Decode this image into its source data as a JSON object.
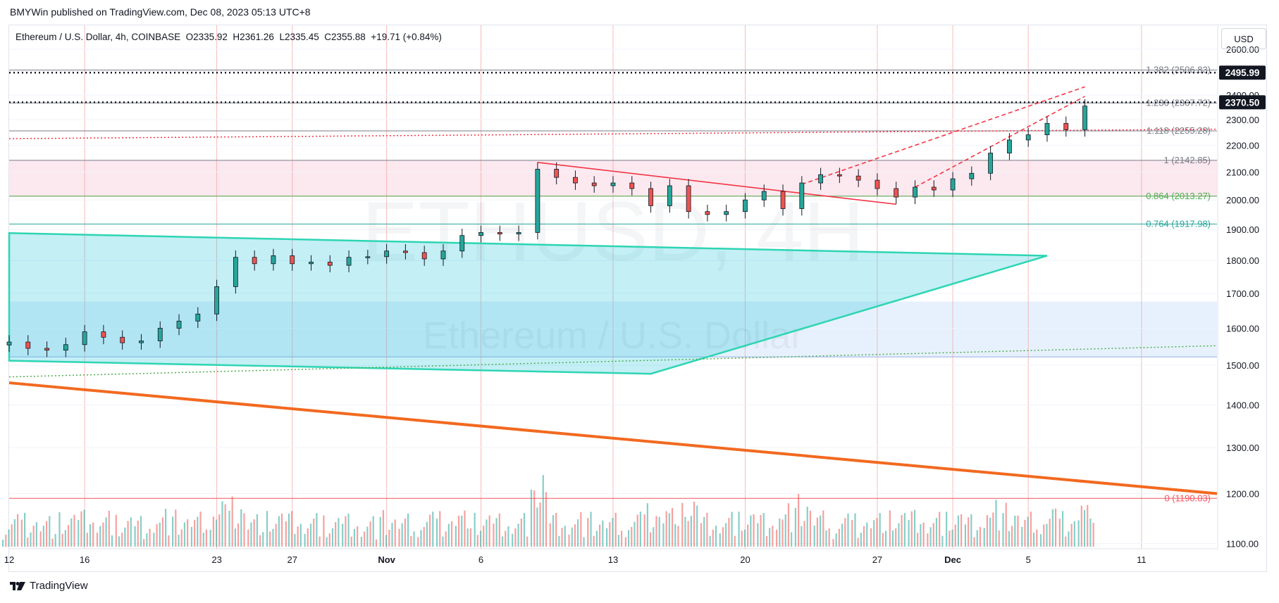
{
  "header": {
    "published_line": "BMYWin published on TradingView.com, Dec 08, 2023 05:13 UTC+8",
    "legend": "Ethereum / U.S. Dollar, 4h, COINBASE  O2335.92  H2361.26  L2335.45  C2355.88  +19.71 (+0.84%)",
    "currency": "USD"
  },
  "footer": {
    "brand": "TradingView",
    "brand_icon": "tradingview-logo-icon"
  },
  "watermark": {
    "symbol": "ETHUSD, 4H",
    "name": "Ethereum / U.S. Dollar"
  },
  "colors": {
    "up": "#26a69a",
    "down": "#ef5350",
    "fib_text": "#787b86",
    "fib_green": "#4caf50",
    "channel": "#2ed5b3",
    "trend_orange": "#f2691f",
    "trend_red": "#f23645",
    "zone_pink": "#fce4ec",
    "zone_blue": "#e3effd"
  },
  "chart_data": {
    "type": "candlestick",
    "symbol": "ETHUSD",
    "timeframe": "4h",
    "exchange": "COINBASE",
    "last": {
      "open": 2335.92,
      "high": 2361.26,
      "low": 2335.45,
      "close": 2355.88,
      "change": 19.71,
      "change_pct": 0.84
    },
    "y_axis": {
      "ticks": [
        1100,
        1200,
        1300,
        1400,
        1500,
        1600,
        1700,
        1800,
        1900,
        2000,
        2100,
        2200,
        2300,
        2400,
        2600
      ],
      "range": [
        1090,
        2710
      ]
    },
    "x_axis": {
      "tick_labels": [
        {
          "label": "12",
          "date": "2023-10-12"
        },
        {
          "label": "16",
          "date": "2023-10-16"
        },
        {
          "label": "23",
          "date": "2023-10-23"
        },
        {
          "label": "27",
          "date": "2023-10-27"
        },
        {
          "label": "Nov",
          "date": "2023-11-01"
        },
        {
          "label": "6",
          "date": "2023-11-06"
        },
        {
          "label": "13",
          "date": "2023-11-13"
        },
        {
          "label": "20",
          "date": "2023-11-20"
        },
        {
          "label": "27",
          "date": "2023-11-27"
        },
        {
          "label": "Dec",
          "date": "2023-12-01"
        },
        {
          "label": "5",
          "date": "2023-12-05"
        },
        {
          "label": "11",
          "date": "2023-12-11"
        }
      ],
      "range": [
        "2023-10-12",
        "2023-12-15"
      ]
    },
    "price_labels": [
      {
        "price": 2495.99,
        "text": "2495.99"
      },
      {
        "price": 2370.5,
        "text": "2370.50"
      }
    ],
    "horizontal_levels": [
      {
        "price": 2495.99,
        "style": "dotted-black"
      },
      {
        "price": 2370.5,
        "style": "dotted-black"
      }
    ],
    "fib_levels": [
      {
        "ratio": "1.382",
        "price": 2506.83,
        "text": "1.382 (2506.83)",
        "color": "#787b86"
      },
      {
        "ratio": "1.236",
        "price": 2367.72,
        "text": "1.236 (2367.72)",
        "color": "#787b86"
      },
      {
        "ratio": "1.118",
        "price": 2255.28,
        "text": "1.118 (2255.28)",
        "color": "#787b86"
      },
      {
        "ratio": "1",
        "price": 2142.85,
        "text": "1 (2142.85)",
        "color": "#787b86"
      },
      {
        "ratio": "0.864",
        "price": 2013.27,
        "text": "0.864 (2013.27)",
        "color": "#4caf50"
      },
      {
        "ratio": "0.764",
        "price": 1917.98,
        "text": "0.764 (1917.98)",
        "color": "#26a69a"
      },
      {
        "ratio": "0",
        "price": 1190.03,
        "text": "0 (1190.03)",
        "color": "#f7525f"
      }
    ],
    "zones": [
      {
        "name": "resistance-zone",
        "from": "2023-10-12",
        "to": "2023-12-15",
        "low": 2013,
        "high": 2142,
        "color": "#fce4ec"
      },
      {
        "name": "support-zone",
        "from": "2023-10-12",
        "to": "2023-12-15",
        "low": 1522,
        "high": 1676,
        "color": "#e3effd"
      }
    ],
    "trendlines": [
      {
        "name": "orange-trendline",
        "from": [
          "2023-10-12",
          1455
        ],
        "to": [
          "2023-12-15",
          1200
        ],
        "color": "#f2691f"
      },
      {
        "name": "red-descending-line",
        "from": [
          "2023-11-09",
          2135
        ],
        "to": [
          "2023-11-28",
          1985
        ],
        "color": "#f23645"
      },
      {
        "name": "red-dashed-channel-upper",
        "from": [
          "2023-11-23",
          2055
        ],
        "to": [
          "2023-12-08",
          2435
        ],
        "color": "#f23645",
        "dashed": true
      },
      {
        "name": "red-dashed-channel-lower",
        "from": [
          "2023-11-29",
          2045
        ],
        "to": [
          "2023-12-08",
          2395
        ],
        "color": "#f23645",
        "dashed": true
      },
      {
        "name": "red-dotted-line",
        "from": [
          "2023-10-12",
          2225
        ],
        "to": [
          "2023-12-15",
          2262
        ],
        "color": "#f23645",
        "dotted": true
      },
      {
        "name": "green-dotted-line",
        "from": [
          "2023-10-12",
          1470
        ],
        "to": [
          "2023-12-15",
          1552
        ],
        "color": "#4caf50",
        "dotted": true
      }
    ],
    "triangle": {
      "points": [
        [
          "2023-10-12",
          1888
        ],
        [
          "2023-12-06",
          1815
        ],
        [
          "2023-11-15",
          1478
        ],
        [
          "2023-10-12",
          1512
        ]
      ],
      "color": "#2ed5b3"
    },
    "candles": [
      [
        "2023-10-12",
        1562
      ],
      [
        "2023-10-13",
        1545
      ],
      [
        "2023-10-14",
        1540
      ],
      [
        "2023-10-15",
        1555
      ],
      [
        "2023-10-16",
        1590
      ],
      [
        "2023-10-17",
        1575
      ],
      [
        "2023-10-18",
        1560
      ],
      [
        "2023-10-19",
        1565
      ],
      [
        "2023-10-20",
        1600
      ],
      [
        "2023-10-21",
        1620
      ],
      [
        "2023-10-22",
        1640
      ],
      [
        "2023-10-23",
        1720
      ],
      [
        "2023-10-24",
        1810
      ],
      [
        "2023-10-25",
        1790
      ],
      [
        "2023-10-26",
        1815
      ],
      [
        "2023-10-27",
        1790
      ],
      [
        "2023-10-28",
        1795
      ],
      [
        "2023-10-29",
        1785
      ],
      [
        "2023-10-30",
        1810
      ],
      [
        "2023-10-31",
        1812
      ],
      [
        "2023-11-01",
        1830
      ],
      [
        "2023-11-02",
        1825
      ],
      [
        "2023-11-03",
        1805
      ],
      [
        "2023-11-04",
        1830
      ],
      [
        "2023-11-05",
        1880
      ],
      [
        "2023-11-06",
        1890
      ],
      [
        "2023-11-07",
        1885
      ],
      [
        "2023-11-08",
        1890
      ],
      [
        "2023-11-09",
        2110
      ],
      [
        "2023-11-10",
        2080
      ],
      [
        "2023-11-11",
        2060
      ],
      [
        "2023-11-12",
        2050
      ],
      [
        "2023-11-13",
        2060
      ],
      [
        "2023-11-14",
        2040
      ],
      [
        "2023-11-15",
        1980
      ],
      [
        "2023-11-16",
        2050
      ],
      [
        "2023-11-17",
        1960
      ],
      [
        "2023-11-18",
        1950
      ],
      [
        "2023-11-19",
        1960
      ],
      [
        "2023-11-20",
        2000
      ],
      [
        "2023-11-21",
        2030
      ],
      [
        "2023-11-22",
        1970
      ],
      [
        "2023-11-23",
        2060
      ],
      [
        "2023-11-24",
        2090
      ],
      [
        "2023-11-25",
        2085
      ],
      [
        "2023-11-26",
        2070
      ],
      [
        "2023-11-27",
        2040
      ],
      [
        "2023-11-28",
        2010
      ],
      [
        "2023-11-29",
        2045
      ],
      [
        "2023-11-30",
        2035
      ],
      [
        "2023-12-01",
        2075
      ],
      [
        "2023-12-02",
        2095
      ],
      [
        "2023-12-03",
        2170
      ],
      [
        "2023-12-04",
        2220
      ],
      [
        "2023-12-05",
        2240
      ],
      [
        "2023-12-06",
        2285
      ],
      [
        "2023-12-07",
        2260
      ],
      [
        "2023-12-08",
        2355
      ]
    ]
  }
}
